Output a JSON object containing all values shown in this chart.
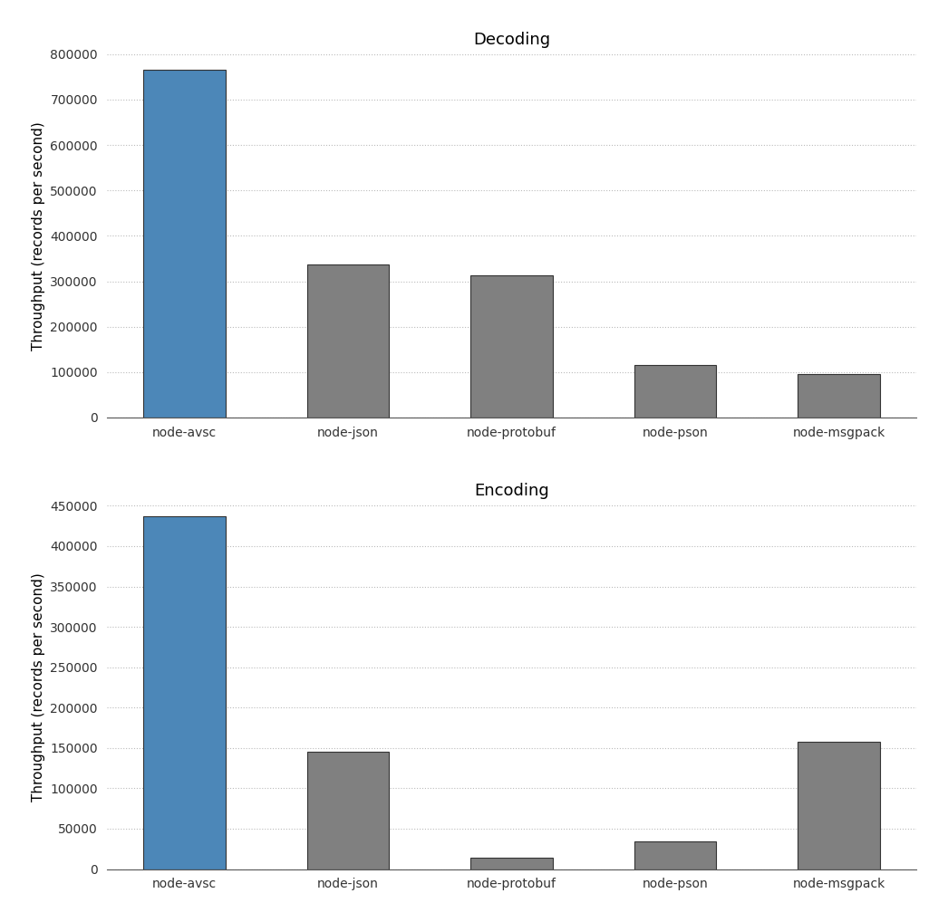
{
  "decoding": {
    "title": "Decoding",
    "categories": [
      "node-avsc",
      "node-json",
      "node-protobuf",
      "node-pson",
      "node-msgpack"
    ],
    "values": [
      765000,
      336000,
      314000,
      116000,
      96000
    ],
    "colors": [
      "#4c87b8",
      "#808080",
      "#808080",
      "#808080",
      "#808080"
    ],
    "ylim": [
      0,
      800000
    ],
    "yticks": [
      0,
      100000,
      200000,
      300000,
      400000,
      500000,
      600000,
      700000,
      800000
    ]
  },
  "encoding": {
    "title": "Encoding",
    "categories": [
      "node-avsc",
      "node-json",
      "node-protobuf",
      "node-pson",
      "node-msgpack"
    ],
    "values": [
      437000,
      145000,
      14000,
      34000,
      158000
    ],
    "colors": [
      "#4c87b8",
      "#808080",
      "#808080",
      "#808080",
      "#808080"
    ],
    "ylim": [
      0,
      450000
    ],
    "yticks": [
      0,
      50000,
      100000,
      150000,
      200000,
      250000,
      300000,
      350000,
      400000,
      450000
    ]
  },
  "ylabel": "Throughput (records per second)",
  "title_fontsize": 13,
  "label_fontsize": 11,
  "tick_fontsize": 10,
  "bar_edge_color": "#333333",
  "bar_edge_width": 0.8,
  "grid_color": "#bbbbbb",
  "grid_linestyle": ":",
  "background_color": "#ffffff"
}
